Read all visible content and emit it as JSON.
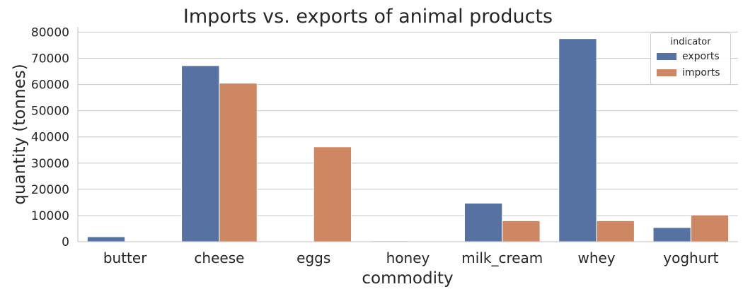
{
  "chart_data": {
    "type": "bar",
    "title": "Imports vs. exports of animal products",
    "xlabel": "commodity",
    "ylabel": "quantity (tonnes)",
    "categories": [
      "butter",
      "cheese",
      "eggs",
      "honey",
      "milk_cream",
      "whey",
      "yoghurt"
    ],
    "series": [
      {
        "name": "exports",
        "color": "#5572a3",
        "values": [
          1900,
          67200,
          0,
          300,
          14700,
          77500,
          5400
        ]
      },
      {
        "name": "imports",
        "color": "#cd8762",
        "values": [
          0,
          60500,
          36200,
          150,
          8000,
          8000,
          10200
        ]
      }
    ],
    "ylim": [
      0,
      82000
    ],
    "yticks": [
      0,
      10000,
      20000,
      30000,
      40000,
      50000,
      60000,
      70000,
      80000
    ],
    "grid": "horizontal",
    "legend": {
      "title": "indicator",
      "position": "top-right"
    }
  }
}
